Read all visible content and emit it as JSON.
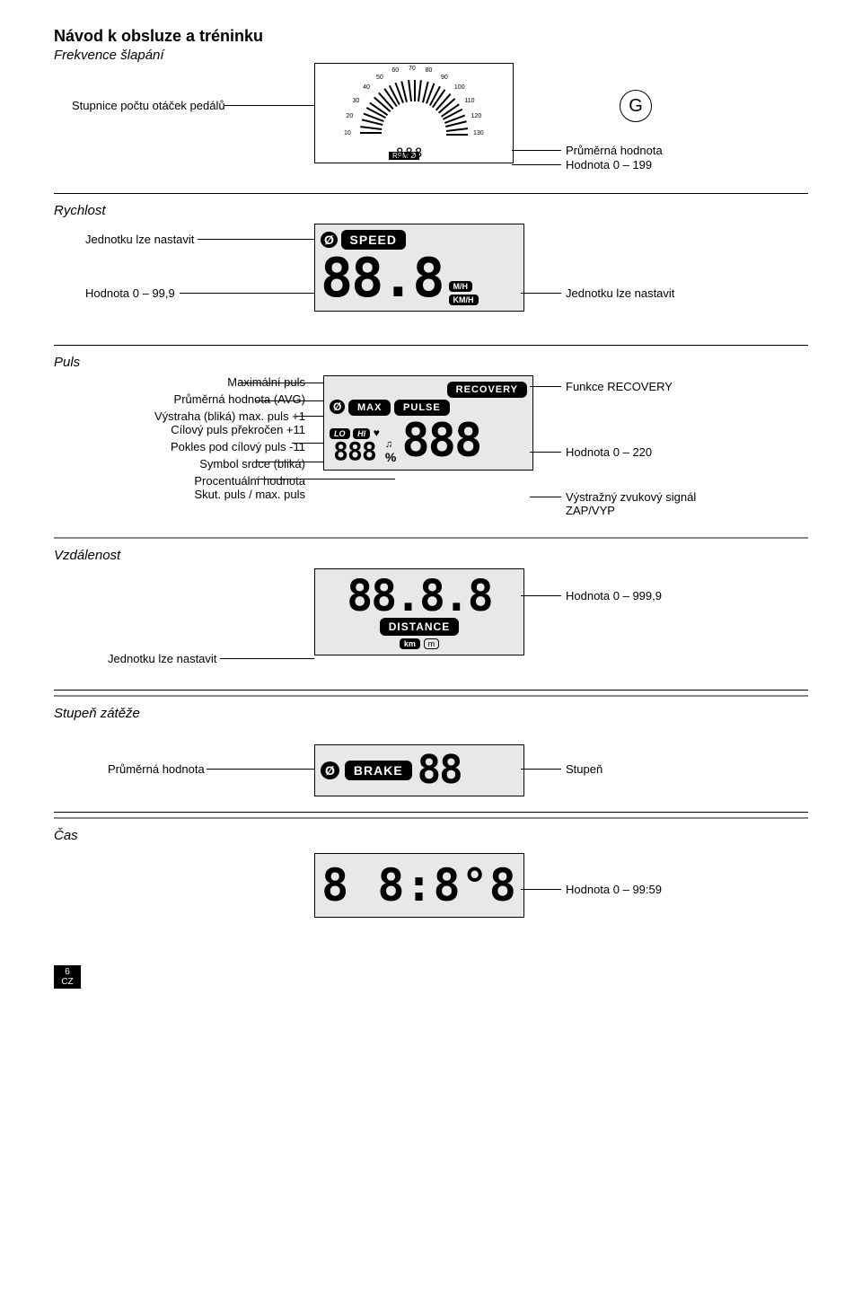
{
  "doc": {
    "title": "Návod k obsluze a tréninku",
    "page_num": "6",
    "locale": "CZ"
  },
  "rpm_section": {
    "heading": "Frekvence šlapání",
    "left_label": "Stupnice počtu otáček pedálů",
    "badge_g": "G",
    "right_label_1": "Průměrná hodnota",
    "right_label_2": "Hodnota 0 – 199",
    "gauge": {
      "rpm_label": "RPM",
      "avg_mark": "Ø",
      "digits": "888",
      "ticks": {
        "start_angle": -90,
        "end_angle": 90,
        "count": 27
      },
      "numbers": [
        "10",
        "20",
        "30",
        "40",
        "50",
        "60",
        "70",
        "80",
        "90",
        "100",
        "110",
        "120",
        "130"
      ]
    }
  },
  "speed_section": {
    "heading": "Rychlost",
    "left_label_1": "Jednotku lze nastavit",
    "left_label_2": "Hodnota 0 – 99,9",
    "right_label_1": "Jednotku lze nastavit",
    "lcd": {
      "avg": "Ø",
      "title": "SPEED",
      "unit1": "M/H",
      "unit2": "KM/H",
      "digits": "88.8"
    }
  },
  "pulse_section": {
    "heading": "Puls",
    "left_labels": {
      "l1": "Maximální puls",
      "l2": "Průměrná hodnota (AVG)",
      "l3": "Výstraha (bliká) max. puls +1",
      "l4": "Cílový puls překročen +11",
      "l5": "Pokles pod cílový puls -11",
      "l6": "Symbol srdce (bliká)",
      "l7": "Procentuální hodnota",
      "l8": "Skut. puls / max. puls"
    },
    "right_labels": {
      "r1": "Funkce RECOVERY",
      "r2": "Hodnota 0 – 220",
      "r3": "Výstražný zvukový signál",
      "r4": "ZAP/VYP"
    },
    "lcd": {
      "recovery": "RECOVERY",
      "avg": "Ø",
      "max": "MAX",
      "pulse": "PULSE",
      "lo": "LO",
      "hi": "HI",
      "heart": "♥",
      "bell": "♫",
      "percent": "%",
      "small_digits": "888",
      "big_digits": "888"
    }
  },
  "distance_section": {
    "heading": "Vzdálenost",
    "left_label_1": "Jednotku lze nastavit",
    "right_label_1": "Hodnota 0 – 999,9",
    "lcd": {
      "digits": "88.8.8",
      "title": "DISTANCE",
      "km": "km",
      "m": "m"
    }
  },
  "brake_section": {
    "heading": "Stupeň zátěže",
    "left_label_1": "Průměrná hodnota",
    "right_label_1": "Stupeň",
    "lcd": {
      "avg": "Ø",
      "title": "BRAKE",
      "digits": "88"
    }
  },
  "time_section": {
    "heading": "Čas",
    "right_label_1": "Hodnota 0 – 99:59",
    "lcd": {
      "digits": "8 8:8°8"
    }
  }
}
